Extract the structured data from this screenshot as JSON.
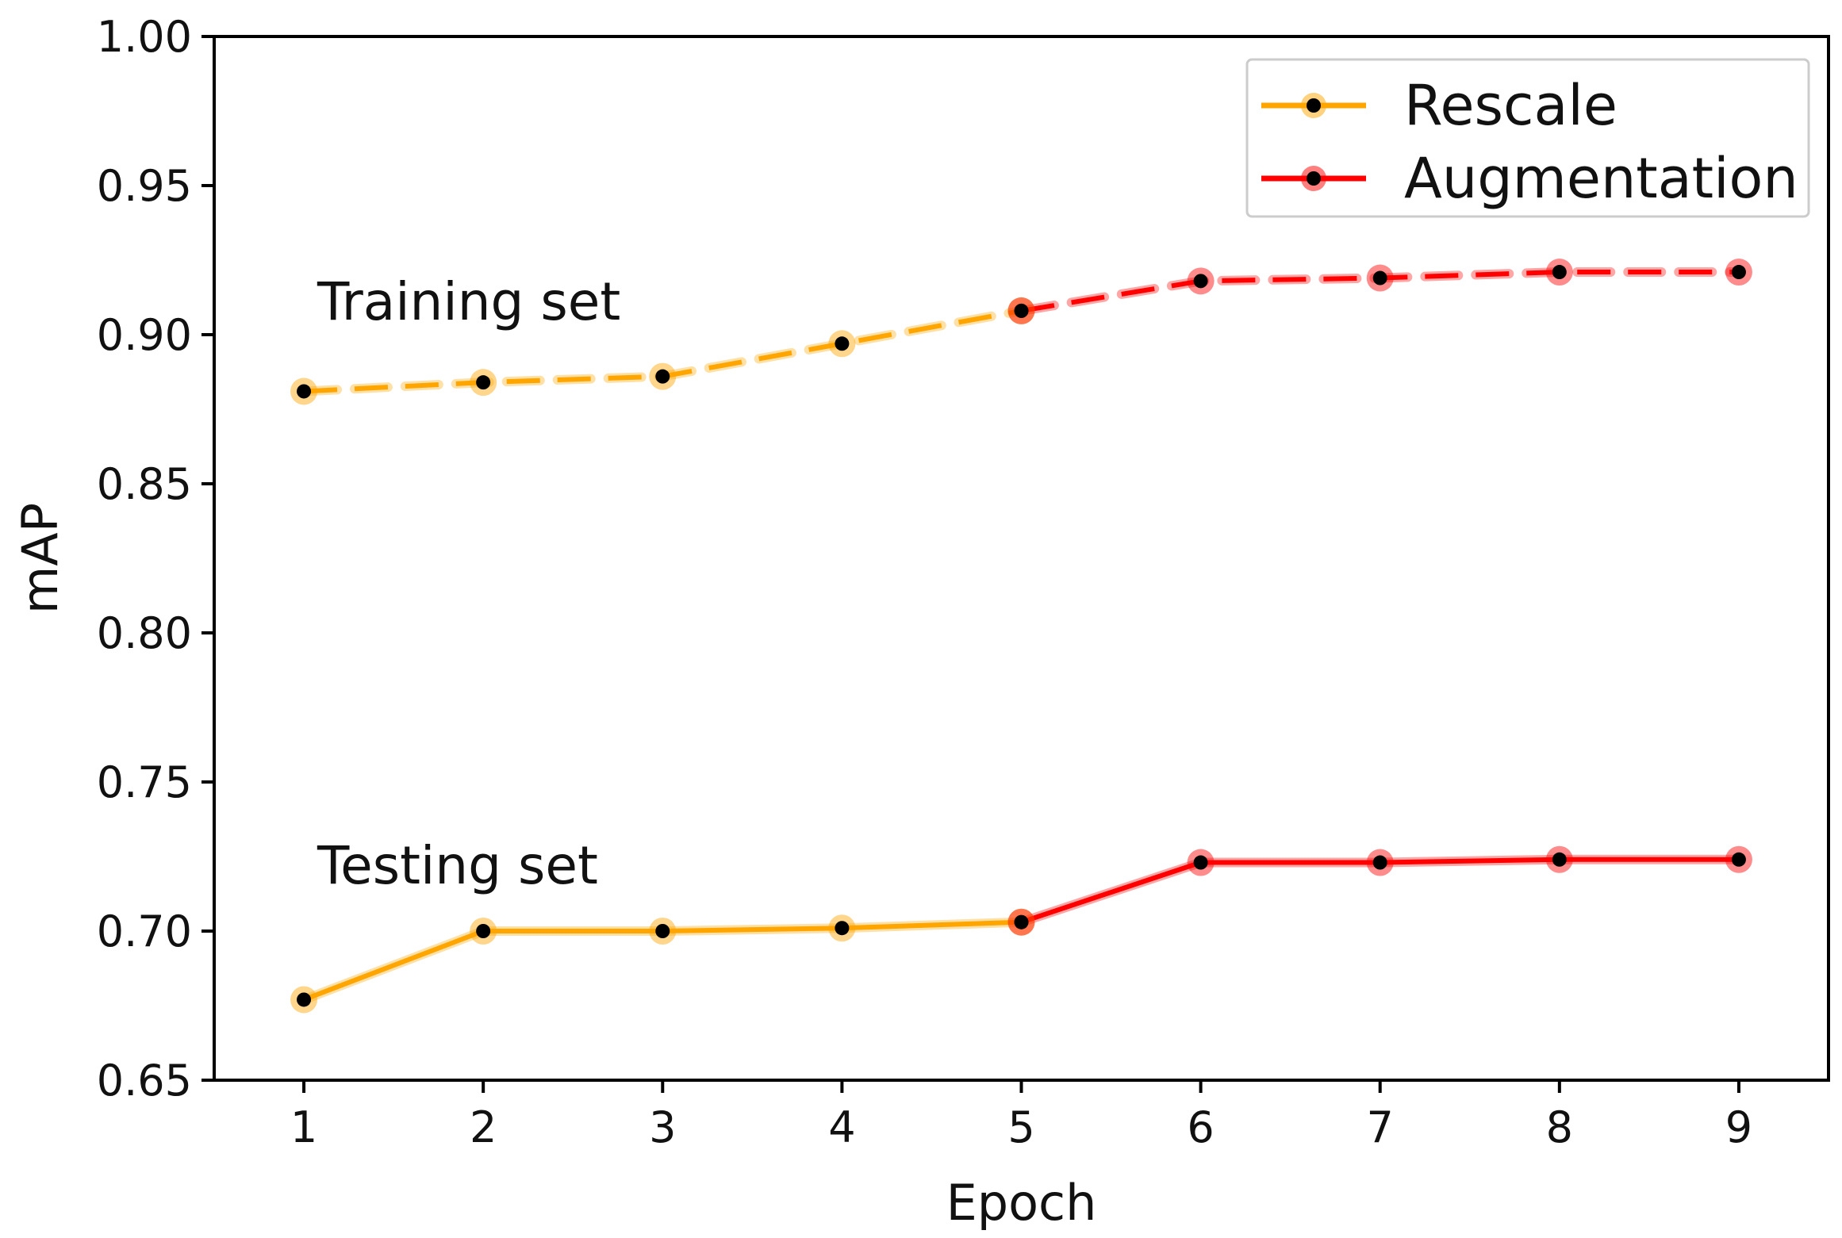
{
  "chart_data": {
    "type": "line",
    "title": "",
    "xlabel": "Epoch",
    "ylabel": "mAP",
    "x": [
      1,
      2,
      3,
      4,
      5,
      6,
      7,
      8,
      9
    ],
    "xlim": [
      0.5,
      9.5
    ],
    "ylim": [
      0.65,
      1.0
    ],
    "yticks": [
      "0.65",
      "0.70",
      "0.75",
      "0.80",
      "0.85",
      "0.90",
      "0.95",
      "1.00"
    ],
    "xticks": [
      "1",
      "2",
      "3",
      "4",
      "5",
      "6",
      "7",
      "8",
      "9"
    ],
    "grid": false,
    "legend_position": "top-right",
    "legend": [
      {
        "name": "Rescale",
        "color": "#FFA500"
      },
      {
        "name": "Augmentation",
        "color": "#FF0000"
      }
    ],
    "annotations": [
      "Training set",
      "Testing set"
    ],
    "series": [
      {
        "name": "Rescale (Training set)",
        "group": "Training set",
        "phase": "Rescale",
        "color": "#FFA500",
        "style": "dashed",
        "x": [
          1,
          2,
          3,
          4,
          5
        ],
        "values": [
          0.881,
          0.884,
          0.886,
          0.897,
          0.908
        ]
      },
      {
        "name": "Augmentation (Training set)",
        "group": "Training set",
        "phase": "Augmentation",
        "color": "#FF0000",
        "style": "dashed",
        "x": [
          5,
          6,
          7,
          8,
          9
        ],
        "values": [
          0.908,
          0.918,
          0.919,
          0.921,
          0.921
        ]
      },
      {
        "name": "Rescale (Testing set)",
        "group": "Testing set",
        "phase": "Rescale",
        "color": "#FFA500",
        "style": "solid",
        "x": [
          1,
          2,
          3,
          4,
          5
        ],
        "values": [
          0.677,
          0.7,
          0.7,
          0.701,
          0.703
        ]
      },
      {
        "name": "Augmentation (Testing set)",
        "group": "Testing set",
        "phase": "Augmentation",
        "color": "#FF0000",
        "style": "solid",
        "x": [
          5,
          6,
          7,
          8,
          9
        ],
        "values": [
          0.703,
          0.723,
          0.723,
          0.724,
          0.724
        ]
      }
    ]
  }
}
